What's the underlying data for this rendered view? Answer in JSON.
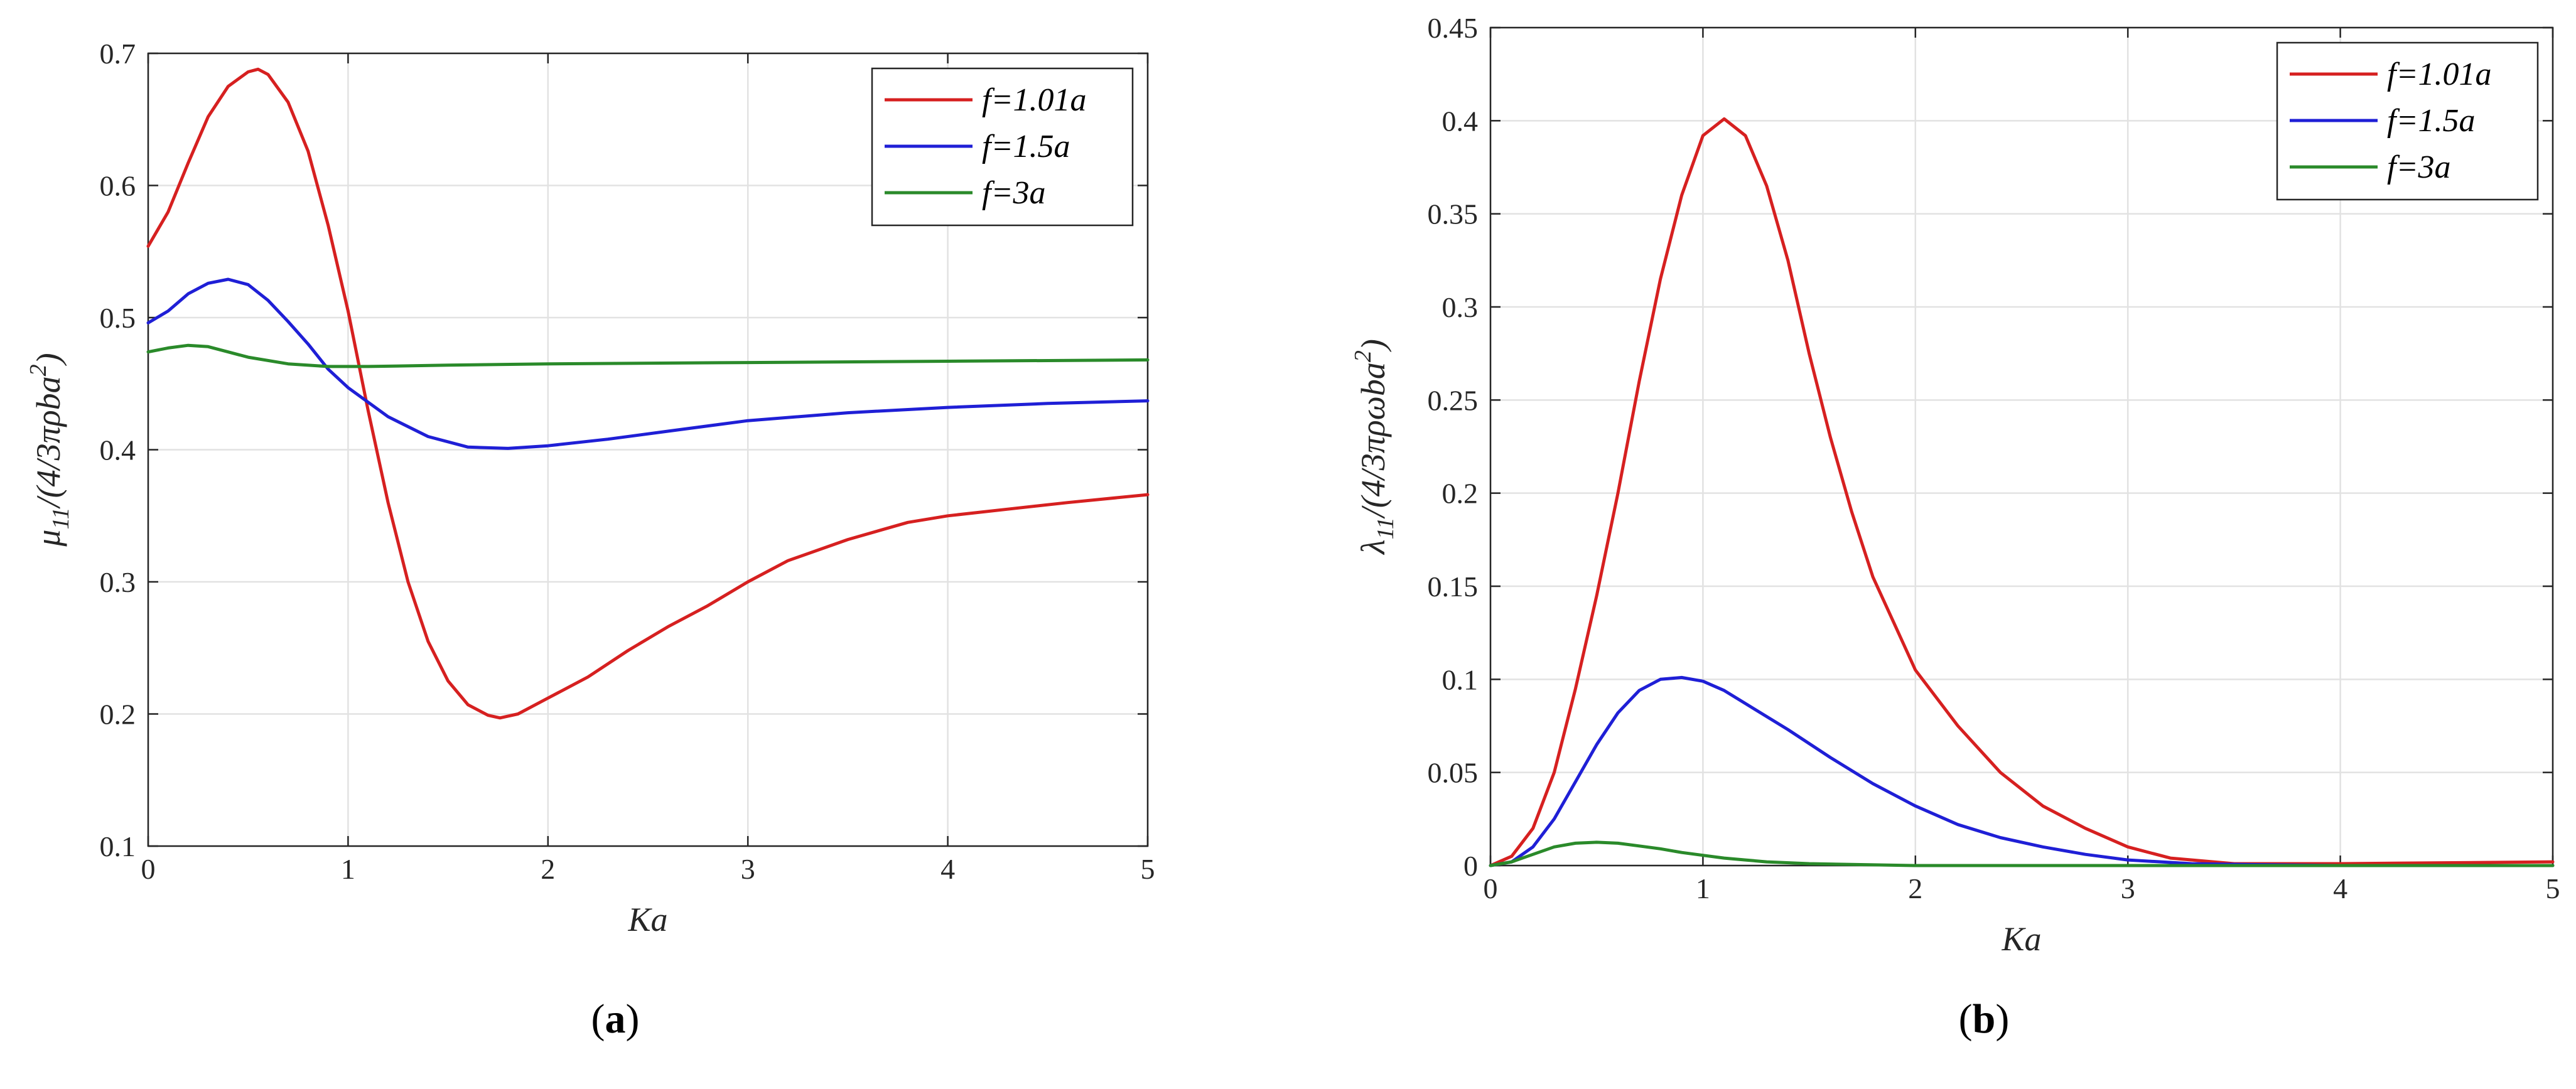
{
  "chart_data": [
    {
      "type": "line",
      "panel_label": "a",
      "xlabel": "Ka",
      "ylabel": {
        "symbol": "μ",
        "sub": "11",
        "rest": "/(4/3πρba",
        "sup": "2",
        "close": ")"
      },
      "xlim": [
        0,
        5
      ],
      "ylim": [
        0.1,
        0.7
      ],
      "xticks": [
        "0",
        "1",
        "2",
        "3",
        "4",
        "5"
      ],
      "yticks": [
        "0.1",
        "0.2",
        "0.3",
        "0.4",
        "0.5",
        "0.6",
        "0.7"
      ],
      "grid": true,
      "legend_position": "top-right",
      "series": [
        {
          "name": "f=1.01a",
          "color": "#d62020",
          "x": [
            0,
            0.1,
            0.2,
            0.3,
            0.4,
            0.5,
            0.55,
            0.6,
            0.7,
            0.8,
            0.9,
            1.0,
            1.1,
            1.2,
            1.3,
            1.4,
            1.5,
            1.6,
            1.7,
            1.76,
            1.85,
            2.0,
            2.2,
            2.4,
            2.6,
            2.8,
            3.0,
            3.2,
            3.5,
            3.8,
            4.0,
            4.3,
            4.6,
            5.0
          ],
          "y": [
            0.554,
            0.58,
            0.617,
            0.652,
            0.675,
            0.686,
            0.688,
            0.684,
            0.663,
            0.626,
            0.57,
            0.505,
            0.43,
            0.36,
            0.3,
            0.255,
            0.225,
            0.207,
            0.199,
            0.197,
            0.2,
            0.212,
            0.228,
            0.248,
            0.266,
            0.282,
            0.3,
            0.316,
            0.332,
            0.345,
            0.35,
            0.355,
            0.36,
            0.366
          ]
        },
        {
          "name": "f=1.5a",
          "color": "#1f1fd6",
          "x": [
            0,
            0.1,
            0.2,
            0.3,
            0.4,
            0.5,
            0.6,
            0.7,
            0.8,
            0.9,
            1.0,
            1.2,
            1.4,
            1.6,
            1.8,
            2.0,
            2.3,
            2.6,
            3.0,
            3.5,
            4.0,
            4.5,
            5.0
          ],
          "y": [
            0.496,
            0.505,
            0.518,
            0.526,
            0.529,
            0.525,
            0.513,
            0.497,
            0.48,
            0.461,
            0.447,
            0.425,
            0.41,
            0.402,
            0.401,
            0.403,
            0.408,
            0.414,
            0.422,
            0.428,
            0.432,
            0.435,
            0.437
          ]
        },
        {
          "name": "f=3a",
          "color": "#2a8a2a",
          "x": [
            0,
            0.1,
            0.2,
            0.3,
            0.4,
            0.5,
            0.7,
            0.9,
            1.1,
            1.5,
            2.0,
            3.0,
            4.0,
            5.0
          ],
          "y": [
            0.474,
            0.477,
            0.479,
            0.478,
            0.474,
            0.47,
            0.465,
            0.463,
            0.463,
            0.464,
            0.465,
            0.466,
            0.467,
            0.468
          ]
        }
      ]
    },
    {
      "type": "line",
      "panel_label": "b",
      "xlabel": "Ka",
      "ylabel": {
        "symbol": "λ",
        "sub": "11",
        "rest": "/(4/3πρωba",
        "sup": "2",
        "close": ")"
      },
      "xlim": [
        0,
        5
      ],
      "ylim": [
        0,
        0.45
      ],
      "xticks": [
        "0",
        "1",
        "2",
        "3",
        "4",
        "5"
      ],
      "yticks": [
        "0",
        "0.05",
        "0.1",
        "0.15",
        "0.2",
        "0.25",
        "0.3",
        "0.35",
        "0.4",
        "0.45"
      ],
      "grid": true,
      "legend_position": "top-right",
      "series": [
        {
          "name": "f=1.01a",
          "color": "#d62020",
          "x": [
            0,
            0.1,
            0.2,
            0.3,
            0.4,
            0.5,
            0.6,
            0.7,
            0.8,
            0.9,
            1.0,
            1.1,
            1.2,
            1.3,
            1.4,
            1.5,
            1.6,
            1.7,
            1.8,
            1.9,
            2.0,
            2.2,
            2.4,
            2.6,
            2.8,
            3.0,
            3.2,
            3.5,
            4.0,
            5.0
          ],
          "y": [
            0,
            0.005,
            0.02,
            0.05,
            0.095,
            0.145,
            0.2,
            0.26,
            0.315,
            0.36,
            0.392,
            0.401,
            0.392,
            0.365,
            0.325,
            0.275,
            0.23,
            0.19,
            0.155,
            0.13,
            0.105,
            0.075,
            0.05,
            0.032,
            0.02,
            0.01,
            0.004,
            0.001,
            0.001,
            0.002
          ]
        },
        {
          "name": "f=1.5a",
          "color": "#1f1fd6",
          "x": [
            0,
            0.1,
            0.2,
            0.3,
            0.4,
            0.5,
            0.6,
            0.7,
            0.8,
            0.9,
            1.0,
            1.1,
            1.2,
            1.4,
            1.6,
            1.8,
            2.0,
            2.2,
            2.4,
            2.6,
            2.8,
            3.0,
            3.3,
            3.6,
            4.0,
            5.0
          ],
          "y": [
            0,
            0.002,
            0.01,
            0.025,
            0.045,
            0.065,
            0.082,
            0.094,
            0.1,
            0.101,
            0.099,
            0.094,
            0.087,
            0.073,
            0.058,
            0.044,
            0.032,
            0.022,
            0.015,
            0.01,
            0.006,
            0.003,
            0.001,
            0.0005,
            0,
            0
          ]
        },
        {
          "name": "f=3a",
          "color": "#2a8a2a",
          "x": [
            0,
            0.1,
            0.2,
            0.3,
            0.4,
            0.5,
            0.6,
            0.7,
            0.8,
            0.9,
            1.0,
            1.1,
            1.2,
            1.3,
            1.5,
            2.0,
            5.0
          ],
          "y": [
            0,
            0.002,
            0.006,
            0.01,
            0.012,
            0.0125,
            0.012,
            0.0105,
            0.009,
            0.007,
            0.0055,
            0.004,
            0.003,
            0.002,
            0.001,
            0,
            0
          ]
        }
      ]
    }
  ]
}
